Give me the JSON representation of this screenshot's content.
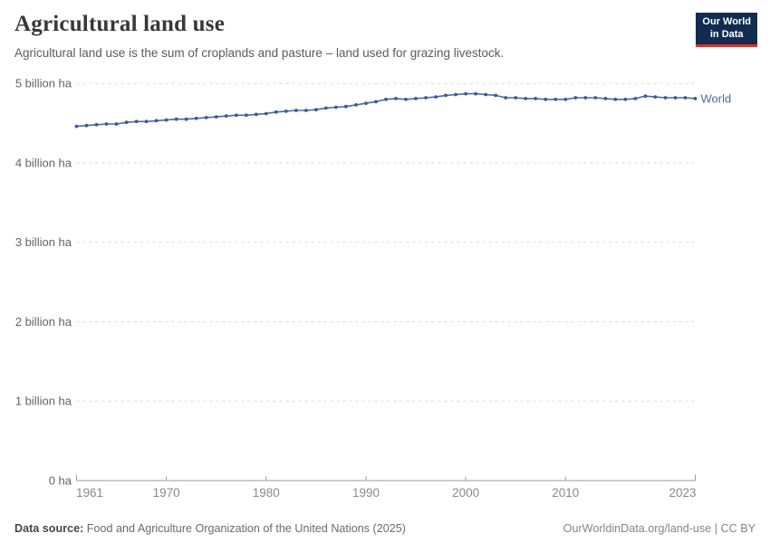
{
  "header": {
    "title": "Agricultural land use",
    "subtitle": "Agricultural land use is the sum of croplands and pasture – land used for grazing livestock.",
    "logo": {
      "line1": "Our World",
      "line2": "in Data",
      "bg": "#112c50",
      "accent": "#d7342a"
    }
  },
  "chart_data": {
    "type": "line",
    "title": "Agricultural land use",
    "unit": "billion ha",
    "xlabel": "",
    "ylabel": "",
    "ylim": [
      0,
      5
    ],
    "grid": "horizontal-dashed",
    "legend_position": "end-of-line",
    "colors": {
      "grid": "#d9d9d9",
      "axis": "#9b9b9b"
    },
    "x": [
      1961,
      1962,
      1963,
      1964,
      1965,
      1966,
      1967,
      1968,
      1969,
      1970,
      1971,
      1972,
      1973,
      1974,
      1975,
      1976,
      1977,
      1978,
      1979,
      1980,
      1981,
      1982,
      1983,
      1984,
      1985,
      1986,
      1987,
      1988,
      1989,
      1990,
      1991,
      1992,
      1993,
      1994,
      1995,
      1996,
      1997,
      1998,
      1999,
      2000,
      2001,
      2002,
      2003,
      2004,
      2005,
      2006,
      2007,
      2008,
      2009,
      2010,
      2011,
      2012,
      2013,
      2014,
      2015,
      2016,
      2017,
      2018,
      2019,
      2020,
      2021,
      2022,
      2023
    ],
    "series": [
      {
        "name": "World",
        "color": "#4c6a9c",
        "marker_color": "#3a5a94",
        "values": [
          4.46,
          4.47,
          4.48,
          4.49,
          4.49,
          4.51,
          4.52,
          4.52,
          4.53,
          4.54,
          4.55,
          4.55,
          4.56,
          4.57,
          4.58,
          4.59,
          4.6,
          4.6,
          4.61,
          4.62,
          4.64,
          4.65,
          4.66,
          4.66,
          4.67,
          4.69,
          4.7,
          4.71,
          4.73,
          4.75,
          4.77,
          4.8,
          4.81,
          4.8,
          4.81,
          4.82,
          4.83,
          4.85,
          4.86,
          4.87,
          4.87,
          4.86,
          4.85,
          4.82,
          4.82,
          4.81,
          4.81,
          4.8,
          4.8,
          4.8,
          4.82,
          4.82,
          4.82,
          4.81,
          4.8,
          4.8,
          4.81,
          4.84,
          4.83,
          4.82,
          4.82,
          4.82,
          4.81
        ]
      }
    ],
    "yticks": [
      {
        "value": 0,
        "label": "0 ha"
      },
      {
        "value": 1,
        "label": "1 billion ha"
      },
      {
        "value": 2,
        "label": "2 billion ha"
      },
      {
        "value": 3,
        "label": "3 billion ha"
      },
      {
        "value": 4,
        "label": "4 billion ha"
      },
      {
        "value": 5,
        "label": "5 billion ha"
      }
    ],
    "xticks": [
      1961,
      1970,
      1980,
      1990,
      2000,
      2010,
      2023
    ]
  },
  "footer": {
    "source_label": "Data source:",
    "source_text": "Food and Agriculture Organization of the United Nations (2025)",
    "attribution": "OurWorldinData.org/land-use | CC BY"
  }
}
